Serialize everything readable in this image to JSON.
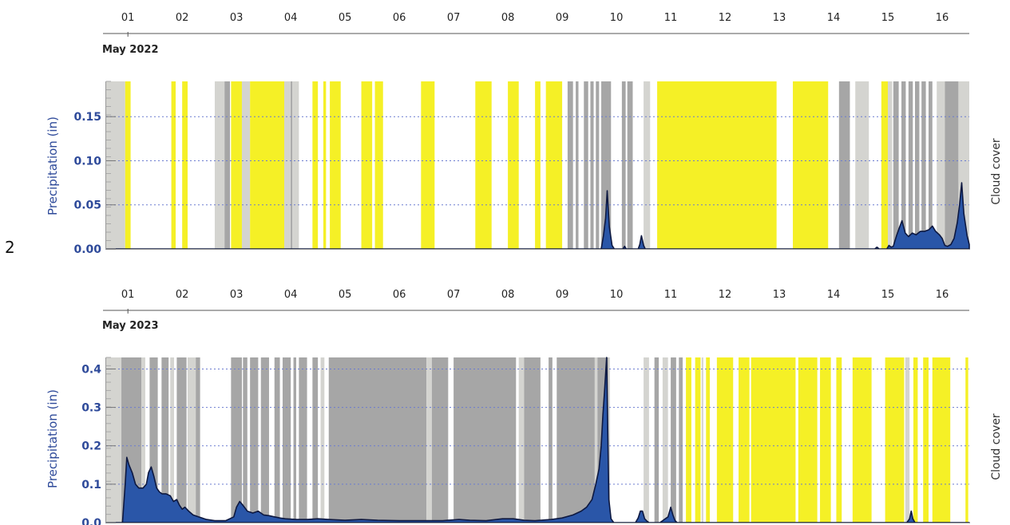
{
  "figure_marker": "2",
  "colors": {
    "clear": "#f5f026",
    "cloudy": "#a6a6a6",
    "partly": "#d4d4d0",
    "precip_fill": "#2a56a8",
    "precip_line": "#0d1840",
    "axis_label": "#2e4a9a",
    "grid": "#6a7bd0"
  },
  "chart_data": [
    {
      "type": "area",
      "month_label": "May 2022",
      "day_labels": [
        "01",
        "02",
        "03",
        "04",
        "05",
        "06",
        "07",
        "08",
        "09",
        "10",
        "11",
        "12",
        "13",
        "14",
        "15",
        "16"
      ],
      "x_domain_days": [
        0.6,
        16.5
      ],
      "ylabel": "Precipitation (in)",
      "right_label": "Cloud cover",
      "yticks": [
        "0.00",
        "0.05",
        "0.10",
        "0.15"
      ],
      "ylim": [
        0,
        0.19
      ],
      "cloud_cover": [
        {
          "s": 0.6,
          "e": 0.95,
          "c": "partly"
        },
        {
          "s": 0.95,
          "e": 1.05,
          "c": "clear"
        },
        {
          "s": 1.8,
          "e": 1.88,
          "c": "clear"
        },
        {
          "s": 2.0,
          "e": 2.1,
          "c": "clear"
        },
        {
          "s": 2.6,
          "e": 2.78,
          "c": "partly"
        },
        {
          "s": 2.78,
          "e": 2.88,
          "c": "cloudy"
        },
        {
          "s": 2.9,
          "e": 3.1,
          "c": "clear"
        },
        {
          "s": 3.1,
          "e": 3.25,
          "c": "partly"
        },
        {
          "s": 3.25,
          "e": 3.88,
          "c": "clear"
        },
        {
          "s": 3.88,
          "e": 4.0,
          "c": "partly"
        },
        {
          "s": 4.0,
          "e": 4.03,
          "c": "cloudy"
        },
        {
          "s": 4.03,
          "e": 4.15,
          "c": "partly"
        },
        {
          "s": 4.4,
          "e": 4.5,
          "c": "clear"
        },
        {
          "s": 4.6,
          "e": 4.65,
          "c": "clear"
        },
        {
          "s": 4.72,
          "e": 4.92,
          "c": "clear"
        },
        {
          "s": 5.3,
          "e": 5.5,
          "c": "clear"
        },
        {
          "s": 5.55,
          "e": 5.7,
          "c": "clear"
        },
        {
          "s": 6.4,
          "e": 6.65,
          "c": "clear"
        },
        {
          "s": 7.4,
          "e": 7.7,
          "c": "clear"
        },
        {
          "s": 8.0,
          "e": 8.2,
          "c": "clear"
        },
        {
          "s": 8.5,
          "e": 8.6,
          "c": "clear"
        },
        {
          "s": 8.7,
          "e": 9.0,
          "c": "clear"
        },
        {
          "s": 9.1,
          "e": 9.2,
          "c": "cloudy"
        },
        {
          "s": 9.25,
          "e": 9.3,
          "c": "cloudy"
        },
        {
          "s": 9.4,
          "e": 9.48,
          "c": "cloudy"
        },
        {
          "s": 9.52,
          "e": 9.58,
          "c": "cloudy"
        },
        {
          "s": 9.62,
          "e": 9.68,
          "c": "cloudy"
        },
        {
          "s": 9.72,
          "e": 9.9,
          "c": "cloudy"
        },
        {
          "s": 10.1,
          "e": 10.17,
          "c": "cloudy"
        },
        {
          "s": 10.2,
          "e": 10.3,
          "c": "cloudy"
        },
        {
          "s": 10.5,
          "e": 10.62,
          "c": "partly"
        },
        {
          "s": 10.75,
          "e": 12.95,
          "c": "clear"
        },
        {
          "s": 13.25,
          "e": 13.9,
          "c": "clear"
        },
        {
          "s": 14.1,
          "e": 14.3,
          "c": "cloudy"
        },
        {
          "s": 14.4,
          "e": 14.65,
          "c": "partly"
        },
        {
          "s": 14.88,
          "e": 15.0,
          "c": "clear"
        },
        {
          "s": 15.0,
          "e": 15.08,
          "c": "partly"
        },
        {
          "s": 15.1,
          "e": 15.2,
          "c": "cloudy"
        },
        {
          "s": 15.25,
          "e": 15.33,
          "c": "cloudy"
        },
        {
          "s": 15.38,
          "e": 15.46,
          "c": "cloudy"
        },
        {
          "s": 15.5,
          "e": 15.58,
          "c": "cloudy"
        },
        {
          "s": 15.62,
          "e": 15.7,
          "c": "cloudy"
        },
        {
          "s": 15.75,
          "e": 15.82,
          "c": "cloudy"
        },
        {
          "s": 15.9,
          "e": 16.05,
          "c": "partly"
        },
        {
          "s": 16.05,
          "e": 16.3,
          "c": "cloudy"
        },
        {
          "s": 16.3,
          "e": 16.5,
          "c": "partly"
        }
      ],
      "precip": [
        [
          0.6,
          0
        ],
        [
          9.72,
          0
        ],
        [
          9.76,
          0.015
        ],
        [
          9.8,
          0.035
        ],
        [
          9.83,
          0.066
        ],
        [
          9.87,
          0.025
        ],
        [
          9.92,
          0.004
        ],
        [
          9.96,
          0
        ],
        [
          10.12,
          0
        ],
        [
          10.15,
          0.003
        ],
        [
          10.18,
          0
        ],
        [
          10.4,
          0
        ],
        [
          10.43,
          0.005
        ],
        [
          10.46,
          0.015
        ],
        [
          10.5,
          0.004
        ],
        [
          10.53,
          0
        ],
        [
          14.76,
          0
        ],
        [
          14.8,
          0.002
        ],
        [
          14.84,
          0
        ],
        [
          14.98,
          0
        ],
        [
          15.02,
          0.004
        ],
        [
          15.06,
          0.002
        ],
        [
          15.1,
          0.003
        ],
        [
          15.16,
          0.015
        ],
        [
          15.2,
          0.022
        ],
        [
          15.26,
          0.032
        ],
        [
          15.32,
          0.018
        ],
        [
          15.38,
          0.014
        ],
        [
          15.45,
          0.018
        ],
        [
          15.52,
          0.016
        ],
        [
          15.6,
          0.02
        ],
        [
          15.68,
          0.02
        ],
        [
          15.76,
          0.022
        ],
        [
          15.82,
          0.026
        ],
        [
          15.88,
          0.02
        ],
        [
          15.95,
          0.016
        ],
        [
          16.0,
          0.012
        ],
        [
          16.05,
          0.004
        ],
        [
          16.1,
          0.003
        ],
        [
          16.16,
          0.005
        ],
        [
          16.22,
          0.012
        ],
        [
          16.28,
          0.03
        ],
        [
          16.32,
          0.05
        ],
        [
          16.36,
          0.075
        ],
        [
          16.4,
          0.04
        ],
        [
          16.46,
          0.015
        ],
        [
          16.5,
          0.005
        ]
      ]
    },
    {
      "type": "area",
      "month_label": "May 2023",
      "day_labels": [
        "01",
        "02",
        "03",
        "04",
        "05",
        "06",
        "07",
        "08",
        "09",
        "10",
        "11",
        "12",
        "13",
        "14",
        "15",
        "16"
      ],
      "x_domain_days": [
        0.6,
        16.5
      ],
      "ylabel": "Precipitation (in)",
      "right_label": "Cloud cover",
      "yticks": [
        "0.0",
        "0.1",
        "0.2",
        "0.3",
        "0.4"
      ],
      "ylim": [
        0,
        0.43
      ],
      "cloud_cover": [
        {
          "s": 0.6,
          "e": 0.88,
          "c": "partly"
        },
        {
          "s": 0.88,
          "e": 1.25,
          "c": "cloudy"
        },
        {
          "s": 1.25,
          "e": 1.32,
          "c": "partly"
        },
        {
          "s": 1.4,
          "e": 1.55,
          "c": "cloudy"
        },
        {
          "s": 1.62,
          "e": 1.75,
          "c": "cloudy"
        },
        {
          "s": 1.78,
          "e": 1.85,
          "c": "partly"
        },
        {
          "s": 1.9,
          "e": 2.08,
          "c": "cloudy"
        },
        {
          "s": 2.1,
          "e": 2.25,
          "c": "partly"
        },
        {
          "s": 2.25,
          "e": 2.33,
          "c": "cloudy"
        },
        {
          "s": 2.9,
          "e": 3.1,
          "c": "cloudy"
        },
        {
          "s": 3.12,
          "e": 3.2,
          "c": "cloudy"
        },
        {
          "s": 3.25,
          "e": 3.4,
          "c": "cloudy"
        },
        {
          "s": 3.45,
          "e": 3.6,
          "c": "cloudy"
        },
        {
          "s": 3.7,
          "e": 3.8,
          "c": "cloudy"
        },
        {
          "s": 3.85,
          "e": 4.0,
          "c": "cloudy"
        },
        {
          "s": 4.05,
          "e": 4.1,
          "c": "cloudy"
        },
        {
          "s": 4.15,
          "e": 4.3,
          "c": "cloudy"
        },
        {
          "s": 4.4,
          "e": 4.5,
          "c": "cloudy"
        },
        {
          "s": 4.55,
          "e": 4.62,
          "c": "partly"
        },
        {
          "s": 4.7,
          "e": 6.5,
          "c": "cloudy"
        },
        {
          "s": 6.5,
          "e": 6.6,
          "c": "partly"
        },
        {
          "s": 6.6,
          "e": 6.9,
          "c": "cloudy"
        },
        {
          "s": 7.0,
          "e": 8.15,
          "c": "cloudy"
        },
        {
          "s": 8.2,
          "e": 8.3,
          "c": "partly"
        },
        {
          "s": 8.3,
          "e": 8.6,
          "c": "cloudy"
        },
        {
          "s": 8.75,
          "e": 8.82,
          "c": "cloudy"
        },
        {
          "s": 8.9,
          "e": 9.6,
          "c": "cloudy"
        },
        {
          "s": 9.6,
          "e": 9.65,
          "c": "partly"
        },
        {
          "s": 9.65,
          "e": 9.85,
          "c": "cloudy"
        },
        {
          "s": 9.85,
          "e": 9.88,
          "c": "partly"
        },
        {
          "s": 10.5,
          "e": 10.6,
          "c": "partly"
        },
        {
          "s": 10.7,
          "e": 10.78,
          "c": "cloudy"
        },
        {
          "s": 10.85,
          "e": 10.95,
          "c": "partly"
        },
        {
          "s": 11.0,
          "e": 11.1,
          "c": "cloudy"
        },
        {
          "s": 11.15,
          "e": 11.22,
          "c": "cloudy"
        },
        {
          "s": 11.28,
          "e": 11.38,
          "c": "clear"
        },
        {
          "s": 11.45,
          "e": 11.55,
          "c": "clear"
        },
        {
          "s": 11.57,
          "e": 11.6,
          "c": "partly"
        },
        {
          "s": 11.65,
          "e": 11.72,
          "c": "clear"
        },
        {
          "s": 11.85,
          "e": 12.15,
          "c": "clear"
        },
        {
          "s": 12.25,
          "e": 12.45,
          "c": "clear"
        },
        {
          "s": 12.48,
          "e": 13.3,
          "c": "clear"
        },
        {
          "s": 13.35,
          "e": 13.7,
          "c": "clear"
        },
        {
          "s": 13.75,
          "e": 13.95,
          "c": "clear"
        },
        {
          "s": 14.05,
          "e": 14.15,
          "c": "clear"
        },
        {
          "s": 14.35,
          "e": 14.7,
          "c": "clear"
        },
        {
          "s": 14.95,
          "e": 15.3,
          "c": "clear"
        },
        {
          "s": 15.32,
          "e": 15.4,
          "c": "partly"
        },
        {
          "s": 15.47,
          "e": 15.55,
          "c": "clear"
        },
        {
          "s": 15.65,
          "e": 15.75,
          "c": "clear"
        },
        {
          "s": 15.82,
          "e": 16.15,
          "c": "clear"
        },
        {
          "s": 16.43,
          "e": 16.48,
          "c": "clear"
        }
      ],
      "precip": [
        [
          0.6,
          0
        ],
        [
          0.9,
          0
        ],
        [
          0.95,
          0.1
        ],
        [
          0.98,
          0.17
        ],
        [
          1.02,
          0.15
        ],
        [
          1.08,
          0.13
        ],
        [
          1.14,
          0.1
        ],
        [
          1.2,
          0.09
        ],
        [
          1.28,
          0.09
        ],
        [
          1.34,
          0.1
        ],
        [
          1.38,
          0.13
        ],
        [
          1.43,
          0.145
        ],
        [
          1.48,
          0.12
        ],
        [
          1.53,
          0.09
        ],
        [
          1.58,
          0.08
        ],
        [
          1.63,
          0.075
        ],
        [
          1.7,
          0.075
        ],
        [
          1.78,
          0.07
        ],
        [
          1.84,
          0.055
        ],
        [
          1.9,
          0.06
        ],
        [
          1.95,
          0.045
        ],
        [
          2.0,
          0.035
        ],
        [
          2.05,
          0.04
        ],
        [
          2.12,
          0.03
        ],
        [
          2.2,
          0.02
        ],
        [
          2.3,
          0.015
        ],
        [
          2.45,
          0.008
        ],
        [
          2.6,
          0.005
        ],
        [
          2.8,
          0.005
        ],
        [
          2.95,
          0.015
        ],
        [
          3.0,
          0.04
        ],
        [
          3.06,
          0.055
        ],
        [
          3.12,
          0.045
        ],
        [
          3.2,
          0.03
        ],
        [
          3.3,
          0.025
        ],
        [
          3.4,
          0.03
        ],
        [
          3.5,
          0.02
        ],
        [
          3.6,
          0.018
        ],
        [
          3.7,
          0.015
        ],
        [
          3.8,
          0.012
        ],
        [
          3.9,
          0.01
        ],
        [
          4.1,
          0.008
        ],
        [
          4.3,
          0.008
        ],
        [
          4.5,
          0.01
        ],
        [
          4.7,
          0.008
        ],
        [
          5.0,
          0.006
        ],
        [
          5.3,
          0.008
        ],
        [
          5.6,
          0.006
        ],
        [
          6.0,
          0.005
        ],
        [
          6.4,
          0.005
        ],
        [
          6.8,
          0.005
        ],
        [
          7.1,
          0.008
        ],
        [
          7.3,
          0.006
        ],
        [
          7.6,
          0.005
        ],
        [
          7.9,
          0.01
        ],
        [
          8.1,
          0.01
        ],
        [
          8.3,
          0.006
        ],
        [
          8.5,
          0.005
        ],
        [
          8.8,
          0.008
        ],
        [
          9.0,
          0.012
        ],
        [
          9.2,
          0.02
        ],
        [
          9.35,
          0.03
        ],
        [
          9.45,
          0.04
        ],
        [
          9.55,
          0.06
        ],
        [
          9.62,
          0.1
        ],
        [
          9.68,
          0.14
        ],
        [
          9.72,
          0.2
        ],
        [
          9.75,
          0.28
        ],
        [
          9.78,
          0.34
        ],
        [
          9.82,
          0.43
        ],
        [
          9.86,
          0.06
        ],
        [
          9.9,
          0.01
        ],
        [
          9.95,
          0
        ],
        [
          10.35,
          0
        ],
        [
          10.4,
          0.012
        ],
        [
          10.44,
          0.03
        ],
        [
          10.48,
          0.03
        ],
        [
          10.52,
          0.01
        ],
        [
          10.56,
          0.004
        ],
        [
          10.6,
          0
        ],
        [
          10.8,
          0
        ],
        [
          10.85,
          0.005
        ],
        [
          10.9,
          0.01
        ],
        [
          10.95,
          0.015
        ],
        [
          11.0,
          0.04
        ],
        [
          11.04,
          0.02
        ],
        [
          11.08,
          0.005
        ],
        [
          11.12,
          0
        ],
        [
          15.35,
          0
        ],
        [
          15.4,
          0.01
        ],
        [
          15.43,
          0.03
        ],
        [
          15.46,
          0.01
        ],
        [
          15.5,
          0
        ],
        [
          16.5,
          0
        ]
      ]
    }
  ]
}
